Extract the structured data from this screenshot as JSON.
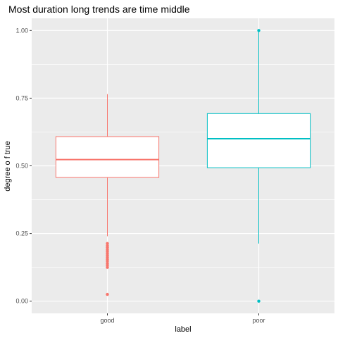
{
  "chart_data": {
    "type": "boxplot",
    "title": "Most duration long trends are time middle",
    "xlabel": "label",
    "ylabel": "degree o f true",
    "ylim": [
      -0.045,
      1.045
    ],
    "y_ticks": [
      0.0,
      0.25,
      0.5,
      0.75,
      1.0
    ],
    "y_tick_labels": [
      "0.00",
      "0.25",
      "0.50",
      "0.75",
      "1.00"
    ],
    "grid": true,
    "categories": [
      "good",
      "poor"
    ],
    "colors": {
      "good": "#F8766D",
      "poor": "#00BFC4",
      "panel": "#EBEBEB",
      "grid": "#FFFFFF",
      "tick": "#4D4D4D"
    },
    "boxes": [
      {
        "category": "good",
        "q1": 0.457,
        "median": 0.523,
        "q3": 0.608,
        "whisker_low": 0.24,
        "whisker_high": 0.765,
        "outliers": [
          0.213,
          0.205,
          0.198,
          0.19,
          0.183,
          0.176,
          0.169,
          0.162,
          0.155,
          0.148,
          0.14,
          0.133,
          0.125,
          0.025
        ]
      },
      {
        "category": "poor",
        "q1": 0.493,
        "median": 0.6,
        "q3": 0.693,
        "whisker_low": 0.213,
        "whisker_high": 1.0,
        "outliers": [
          1.0,
          0.0
        ]
      }
    ]
  }
}
